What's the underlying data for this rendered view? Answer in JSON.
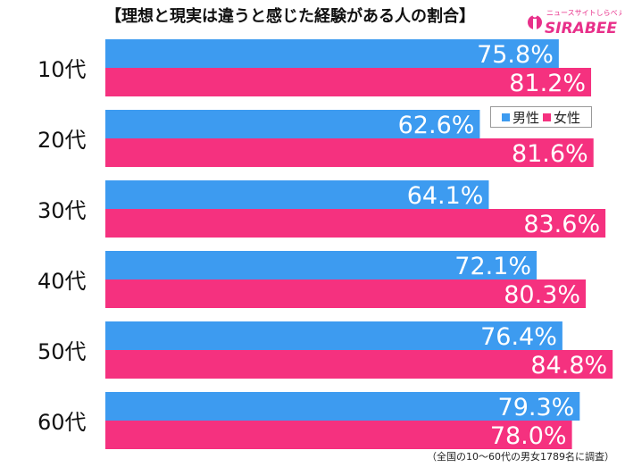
{
  "title": "【理想と現実は違うと感じた経験がある人の割合】",
  "logo": {
    "tagline": "ニュースサイトしらべぇ",
    "name": "SIRABEE"
  },
  "footnote": "（全国の10～60代の男女1789名に調査）",
  "legend": [
    {
      "label": "男性",
      "color": "#3d9bf0"
    },
    {
      "label": "女性",
      "color": "#f5317f"
    }
  ],
  "chart_data": {
    "type": "bar",
    "orientation": "horizontal",
    "categories": [
      "10代",
      "20代",
      "30代",
      "40代",
      "50代",
      "60代"
    ],
    "series": [
      {
        "name": "男性",
        "color": "#3d9bf0",
        "values": [
          75.8,
          62.6,
          64.1,
          72.1,
          76.4,
          79.3
        ],
        "labels": [
          "75.8%",
          "62.6%",
          "64.1%",
          "72.1%",
          "76.4%",
          "79.3%"
        ]
      },
      {
        "name": "女性",
        "color": "#f5317f",
        "values": [
          81.2,
          81.6,
          83.6,
          80.3,
          84.8,
          78.0
        ],
        "labels": [
          "81.2%",
          "81.6%",
          "83.6%",
          "80.3%",
          "84.8%",
          "78.0%"
        ]
      }
    ],
    "xlim": [
      0,
      100
    ],
    "grid": false,
    "legend_position": "top-right"
  }
}
